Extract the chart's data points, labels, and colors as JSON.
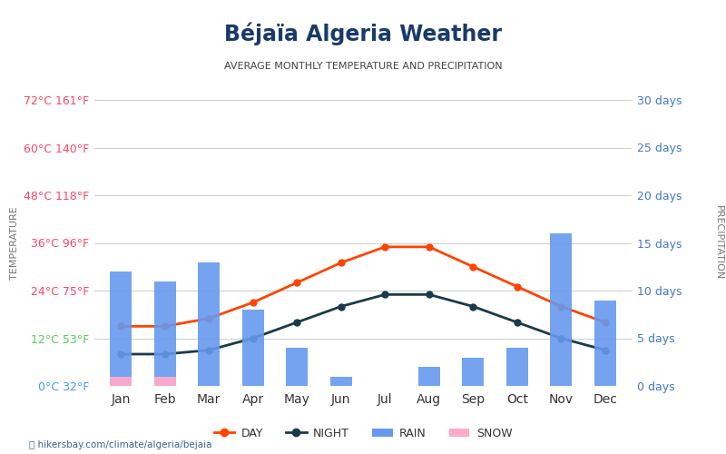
{
  "title": "Béjaïa Algeria Weather",
  "subtitle": "AVERAGE MONTHLY TEMPERATURE AND PRECIPITATION",
  "months": [
    "Jan",
    "Feb",
    "Mar",
    "Apr",
    "May",
    "Jun",
    "Jul",
    "Aug",
    "Sep",
    "Oct",
    "Nov",
    "Dec"
  ],
  "day_temp": [
    15,
    15,
    17,
    21,
    26,
    31,
    35,
    35,
    30,
    25,
    20,
    16
  ],
  "night_temp": [
    8,
    8,
    9,
    12,
    16,
    20,
    23,
    23,
    20,
    16,
    12,
    9
  ],
  "rain_days": [
    12,
    11,
    13,
    8,
    4,
    1,
    0,
    2,
    3,
    4,
    16,
    9
  ],
  "snow_days": [
    1,
    1,
    0,
    0,
    0,
    0,
    0,
    0,
    0,
    0,
    0,
    0
  ],
  "temp_yticks_c": [
    0,
    12,
    24,
    36,
    48,
    60,
    72
  ],
  "temp_yticks_f": [
    32,
    53,
    75,
    96,
    118,
    140,
    161
  ],
  "temp_ylim": [
    0,
    72
  ],
  "precip_yticks": [
    0,
    5,
    10,
    15,
    20,
    25,
    30
  ],
  "precip_ylim": [
    0,
    30
  ],
  "bar_color": "#6699ee",
  "snow_color": "#ffaacc",
  "day_line_color": "#ff4400",
  "night_line_color": "#1a3a4a",
  "color_0c": "#4499ff",
  "color_12c": "#55cc55",
  "color_warm": "#ff4466",
  "right_tick_color": "#4477cc",
  "background_color": "#ffffff",
  "grid_color": "#cccccc",
  "title_color": "#1a3a6a",
  "subtitle_color": "#444444",
  "footer_text": "hikersbay.com/climate/algeria/bejaia",
  "left_label_color": "#777777",
  "right_label_color": "#777777"
}
